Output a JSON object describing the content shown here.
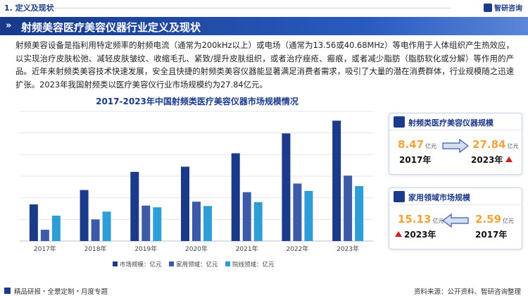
{
  "header": {
    "section": "1. 定义及现状",
    "brand": "智研咨询"
  },
  "banner": {
    "title": "射频美容医疗美容仪器行业定义及现状"
  },
  "paragraph": "射频美容设备是指利用特定频率的射频电流（通常为200kHz以上）或电场（通常为13.56或40.68MHz）等电作用于人体组织产生热效应，以实现治疗皮肤松弛、减轻皮肤皱纹、收缩毛孔、紧致/提升皮肤组织，或者治疗痤疮、瘢痕，或者减少脂肪（脂肪软化或分解）等作用的产品。近年来射频类美容技术快速发展，安全且快捷的射频类美容仪器能显著满足消费者需求，吸引了大量的潜在消费群体，行业规模随之迅速扩张。2023年我国射频类以医疗美容仪行业市场规模约为27.84亿元。",
  "chart_data": {
    "type": "bar",
    "title": "2017-2023年中国射频类医疗美容仪器市场规模情况",
    "categories": [
      "2017年",
      "2018年",
      "2019年",
      "2020年",
      "2021年",
      "2022年",
      "2023年"
    ],
    "series": [
      {
        "name": "市场规模：亿元",
        "color": "#1b3a8a",
        "values": [
          8.47,
          11.8,
          16.0,
          17.2,
          20.3,
          24.9,
          27.84
        ]
      },
      {
        "name": "家用领域：亿元",
        "color": "#3d5aa8",
        "values": [
          2.6,
          5.0,
          8.2,
          9.1,
          11.3,
          13.3,
          15.13
        ]
      },
      {
        "name": "院线领域：亿元",
        "color": "#2f9ed6",
        "values": [
          5.87,
          6.8,
          7.8,
          8.1,
          9.0,
          11.6,
          12.71
        ]
      }
    ],
    "ylim": [
      0,
      30
    ],
    "grid": true,
    "legend": "bottom"
  },
  "card1": {
    "title": "射频类医疗美容仪器规模",
    "left_value": "8.47",
    "left_unit": "亿元",
    "left_year": "2017年",
    "right_value": "27.84",
    "right_unit": "亿元",
    "right_year": "2023年"
  },
  "card2": {
    "title": "家用领域市场规模",
    "left_value": "15.13",
    "left_unit": "亿元",
    "left_year": "2023年",
    "right_value": "2.59",
    "right_unit": "亿元",
    "right_year": "2017年"
  },
  "footer": {
    "left": "精品研报・全景定制・月度专题",
    "right": "资料来源：公开资料、智研咨询整理"
  },
  "colors": {
    "primary": "#1b3a8a",
    "accent": "#f2a33a",
    "up_arrow": "#d11e1e"
  }
}
